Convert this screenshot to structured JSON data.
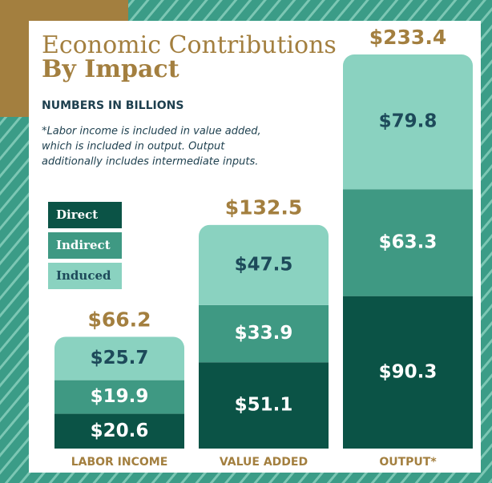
{
  "chart_data": {
    "type": "stacked_bar",
    "title_lines": [
      "Economic Contributions",
      "By Impact"
    ],
    "subtitle": "NUMBERS IN BILLIONS",
    "note_lines": [
      "*Labor income is included in value added,",
      "which is included in output. Output",
      "additionally includes intermediate inputs."
    ],
    "categories": [
      "LABOR INCOME",
      "VALUE ADDED",
      "OUTPUT*"
    ],
    "series": [
      {
        "name": "Direct",
        "color": "#0b5346",
        "values": [
          20.6,
          51.1,
          90.3
        ],
        "value_labels": [
          "$20.6",
          "$51.1",
          "$90.3"
        ]
      },
      {
        "name": "Indirect",
        "color": "#3f9983",
        "values": [
          19.9,
          33.9,
          63.3
        ],
        "value_labels": [
          "$19.9",
          "$33.9",
          "$63.3"
        ]
      },
      {
        "name": "Induced",
        "color": "#8ad2c0",
        "values": [
          25.7,
          47.5,
          79.8
        ],
        "value_labels": [
          "$25.7",
          "$47.5",
          "$79.8"
        ]
      }
    ],
    "totals": [
      66.2,
      132.5,
      233.4
    ],
    "total_labels": [
      "$66.2",
      "$132.5",
      "$233.4"
    ]
  }
}
